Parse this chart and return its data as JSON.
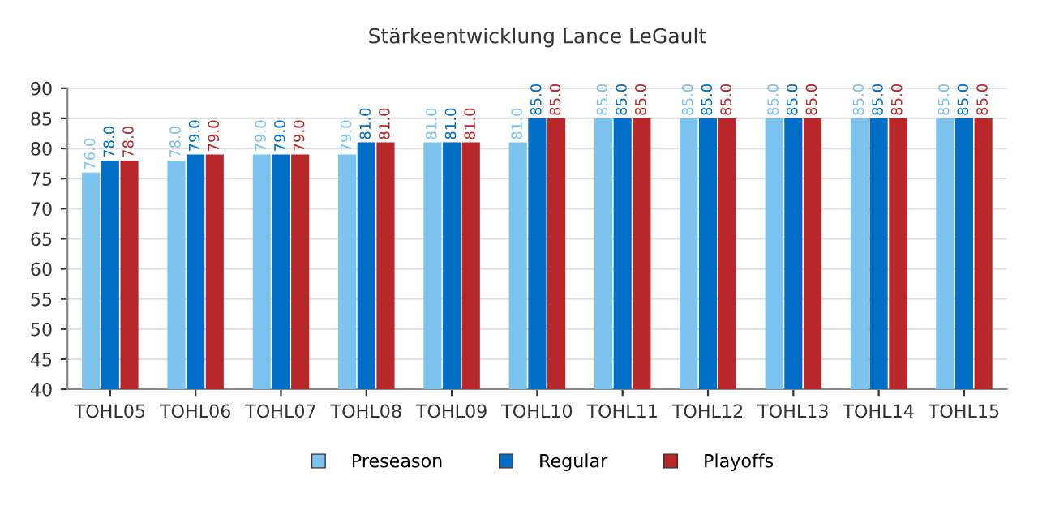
{
  "chart_data": {
    "type": "bar",
    "title": "Stärkeentwicklung Lance LeGault",
    "categories": [
      "TOHL05",
      "TOHL06",
      "TOHL07",
      "TOHL08",
      "TOHL09",
      "TOHL10",
      "TOHL11",
      "TOHL12",
      "TOHL13",
      "TOHL14",
      "TOHL15"
    ],
    "series": [
      {
        "name": "Preseason",
        "color": "#7cc4ef",
        "values": [
          76,
          78,
          79,
          79,
          81,
          81,
          85,
          85,
          85,
          85,
          85
        ],
        "value_labels": [
          "76.0",
          "78.0",
          "79.0",
          "79.0",
          "81.0",
          "81.0",
          "85.0",
          "85.0",
          "85.0",
          "85.0",
          "85.0"
        ]
      },
      {
        "name": "Regular",
        "color": "#006ec6",
        "values": [
          78,
          79,
          79,
          81,
          81,
          85,
          85,
          85,
          85,
          85,
          85
        ],
        "value_labels": [
          "78.0",
          "79.0",
          "79.0",
          "81.0",
          "81.0",
          "85.0",
          "85.0",
          "85.0",
          "85.0",
          "85.0",
          "85.0"
        ]
      },
      {
        "name": "Playoffs",
        "color": "#b8272a",
        "values": [
          78,
          79,
          79,
          81,
          81,
          85,
          85,
          85,
          85,
          85,
          85
        ],
        "value_labels": [
          "78.0",
          "79.0",
          "79.0",
          "81.0",
          "81.0",
          "85.0",
          "85.0",
          "85.0",
          "85.0",
          "85.0",
          "85.0"
        ]
      }
    ],
    "ylim": [
      40,
      90
    ],
    "yticks": [
      40,
      45,
      50,
      55,
      60,
      65,
      70,
      75,
      80,
      85,
      90
    ],
    "grid": "y",
    "legend": "bottom"
  }
}
